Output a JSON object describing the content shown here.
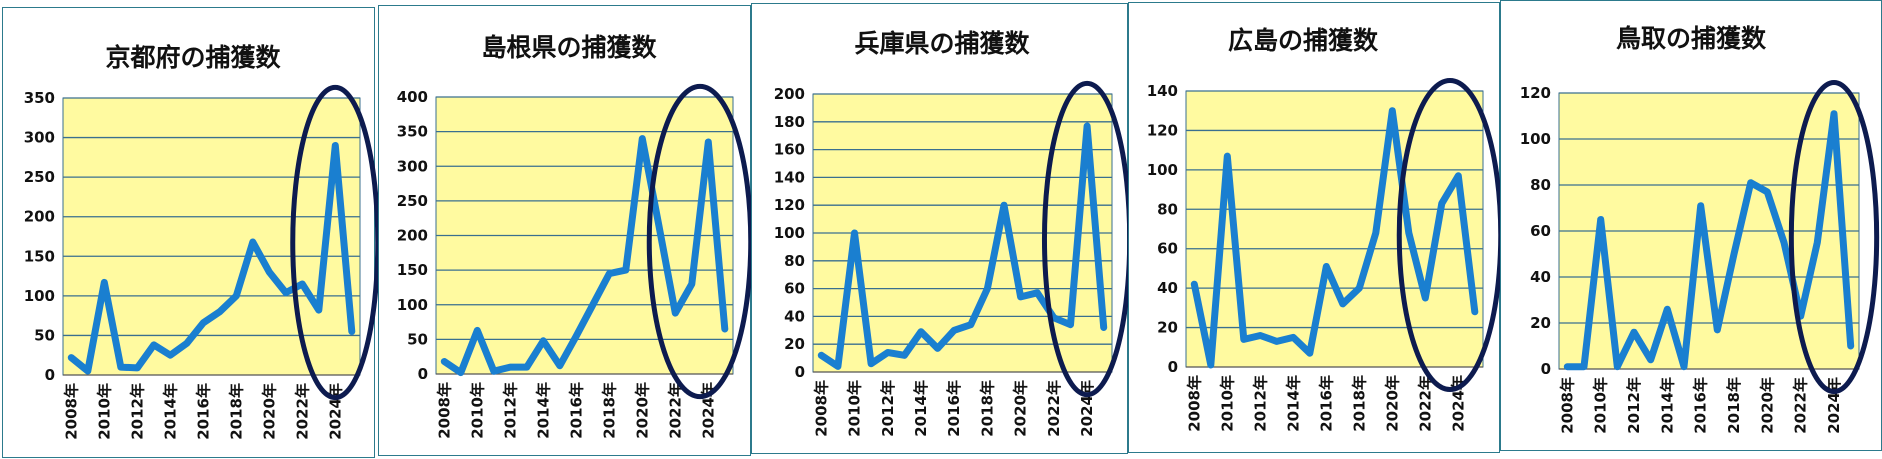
{
  "colors": {
    "plot_bg": "#fffaa0",
    "line": "#1a7fd0",
    "grid": "#3a6f8f",
    "ellipse": "#0d1b4f",
    "border": "#2c7a8c"
  },
  "chart_data": [
    {
      "type": "line",
      "title": "京都府の捕獲数",
      "categories": [
        "2008年",
        "2009年",
        "2010年",
        "2011年",
        "2012年",
        "2013年",
        "2014年",
        "2015年",
        "2016年",
        "2017年",
        "2018年",
        "2019年",
        "2020年",
        "2021年",
        "2022年",
        "2023年",
        "2024年",
        "2025年"
      ],
      "tick_labels": [
        "2008年",
        "2010年",
        "2012年",
        "2014年",
        "2016年",
        "2018年",
        "2020年",
        "2022年",
        "2024年"
      ],
      "values": [
        22,
        5,
        117,
        10,
        9,
        38,
        25,
        40,
        66,
        80,
        100,
        168,
        130,
        104,
        115,
        82,
        290,
        55
      ],
      "ylim": [
        0,
        350
      ],
      "yticks": [
        0,
        50,
        100,
        150,
        200,
        250,
        300,
        350
      ],
      "highlight": [
        "2023年",
        "2025年"
      ]
    },
    {
      "type": "line",
      "title": "島根県の捕獲数",
      "categories": [
        "2008年",
        "2009年",
        "2010年",
        "2011年",
        "2012年",
        "2013年",
        "2014年",
        "2015年",
        "2016年",
        "2017年",
        "2018年",
        "2019年",
        "2020年",
        "2021年",
        "2022年",
        "2023年",
        "2024年",
        "2025年"
      ],
      "tick_labels": [
        "2008年",
        "2010年",
        "2012年",
        "2014年",
        "2016年",
        "2018年",
        "2020年",
        "2022年",
        "2024年"
      ],
      "values": [
        18,
        2,
        63,
        4,
        10,
        10,
        48,
        12,
        55,
        100,
        145,
        150,
        340,
        215,
        88,
        130,
        335,
        65
      ],
      "ylim": [
        0,
        400
      ],
      "yticks": [
        0,
        50,
        100,
        150,
        200,
        250,
        300,
        350,
        400
      ],
      "highlight": [
        "2022年",
        "2025年"
      ]
    },
    {
      "type": "line",
      "title": "兵庫県の捕獲数",
      "categories": [
        "2008年",
        "2009年",
        "2010年",
        "2011年",
        "2012年",
        "2013年",
        "2014年",
        "2015年",
        "2016年",
        "2017年",
        "2018年",
        "2019年",
        "2020年",
        "2021年",
        "2022年",
        "2023年",
        "2024年",
        "2025年"
      ],
      "tick_labels": [
        "2008年",
        "2010年",
        "2012年",
        "2014年",
        "2016年",
        "2018年",
        "2020年",
        "2022年",
        "2024年"
      ],
      "values": [
        12,
        4,
        100,
        6,
        14,
        12,
        29,
        17,
        30,
        34,
        60,
        120,
        54,
        57,
        39,
        34,
        177,
        32
      ],
      "ylim": [
        0,
        200
      ],
      "yticks": [
        0,
        20,
        40,
        60,
        80,
        100,
        120,
        140,
        160,
        180,
        200
      ],
      "highlight": [
        "2023年",
        "2025年"
      ]
    },
    {
      "type": "line",
      "title": "広島の捕獲数",
      "categories": [
        "2008年",
        "2009年",
        "2010年",
        "2011年",
        "2012年",
        "2013年",
        "2014年",
        "2015年",
        "2016年",
        "2017年",
        "2018年",
        "2019年",
        "2020年",
        "2021年",
        "2022年",
        "2023年",
        "2024年",
        "2025年"
      ],
      "tick_labels": [
        "2008年",
        "2010年",
        "2012年",
        "2014年",
        "2016年",
        "2018年",
        "2020年",
        "2022年",
        "2024年"
      ],
      "values": [
        42,
        1,
        107,
        14,
        16,
        13,
        15,
        7,
        51,
        32,
        40,
        68,
        130,
        68,
        35,
        83,
        97,
        28
      ],
      "ylim": [
        0,
        140
      ],
      "yticks": [
        0,
        20,
        40,
        60,
        80,
        100,
        120,
        140
      ],
      "highlight": [
        "2022年",
        "2025年"
      ]
    },
    {
      "type": "line",
      "title": "鳥取の捕獲数",
      "categories": [
        "2008年",
        "2009年",
        "2010年",
        "2011年",
        "2012年",
        "2013年",
        "2014年",
        "2015年",
        "2016年",
        "2017年",
        "2018年",
        "2019年",
        "2020年",
        "2021年",
        "2022年",
        "2023年",
        "2024年",
        "2025年"
      ],
      "tick_labels": [
        "2008年",
        "2010年",
        "2012年",
        "2014年",
        "2016年",
        "2018年",
        "2020年",
        "2022年",
        "2024年"
      ],
      "values": [
        1,
        1,
        65,
        1,
        16,
        4,
        26,
        1,
        71,
        17,
        50,
        81,
        77,
        55,
        23,
        55,
        111,
        10
      ],
      "ylim": [
        0,
        120
      ],
      "yticks": [
        0,
        20,
        40,
        60,
        80,
        100,
        120
      ],
      "highlight": [
        "2023年",
        "2025年"
      ]
    }
  ]
}
